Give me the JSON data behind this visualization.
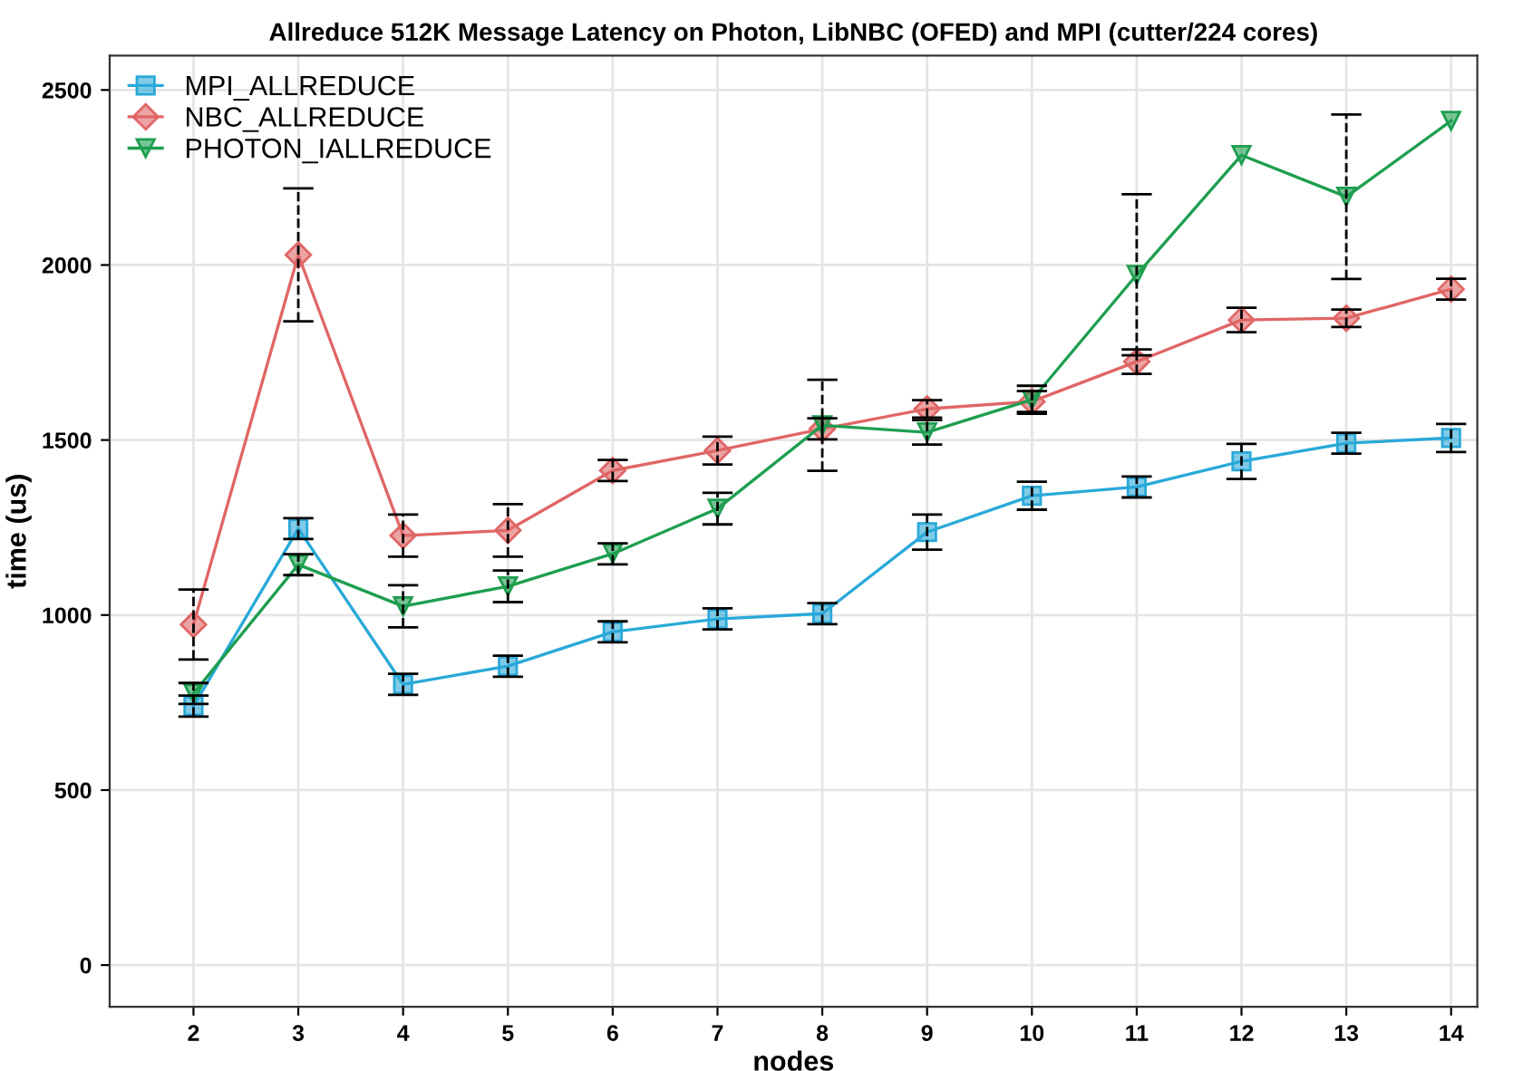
{
  "chart_data": {
    "type": "line",
    "title": "Allreduce 512K Message Latency on Photon, LibNBC (OFED) and MPI (cutter/224 cores)",
    "xlabel": "nodes",
    "ylabel": "time (us)",
    "x": [
      2,
      3,
      4,
      5,
      6,
      7,
      8,
      9,
      10,
      11,
      12,
      13,
      14
    ],
    "series": [
      {
        "name": "MPI_ALLREDUCE",
        "color": "#29a9d8",
        "marker": "square",
        "values": [
          740,
          1247,
          802,
          854,
          952,
          989,
          1004,
          1237,
          1341,
          1366,
          1439,
          1491,
          1506
        ],
        "errors": [
          30,
          30,
          30,
          30,
          30,
          30,
          30,
          50,
          40,
          30,
          50,
          30,
          40
        ]
      },
      {
        "name": "NBC_ALLREDUCE",
        "color": "#e06666",
        "marker": "diamond",
        "values": [
          973,
          2029,
          1227,
          1242,
          1413,
          1470,
          1532,
          1589,
          1610,
          1724,
          1843,
          1848,
          1931
        ],
        "errors": [
          100,
          190,
          60,
          75,
          30,
          40,
          30,
          25,
          30,
          35,
          35,
          25,
          30
        ]
      },
      {
        "name": "PHOTON_IALLREDUCE",
        "color": "#1e9e50",
        "marker": "triangle",
        "values": [
          776,
          1144,
          1025,
          1082,
          1175,
          1304,
          1542,
          1522,
          1615,
          1972,
          2314,
          2195,
          2412
        ],
        "errors": [
          30,
          30,
          60,
          45,
          30,
          45,
          130,
          35,
          40,
          230,
          null,
          235,
          null
        ]
      }
    ],
    "xlim": [
      1.2,
      14.25
    ],
    "xticks": [
      2,
      3,
      4,
      5,
      6,
      7,
      8,
      9,
      10,
      11,
      12,
      13,
      14
    ],
    "ylim": [
      -119,
      2598
    ],
    "yticks": [
      0,
      500,
      1000,
      1500,
      2000,
      2500
    ],
    "grid": true,
    "legend": "top left",
    "line_style": "solid"
  }
}
